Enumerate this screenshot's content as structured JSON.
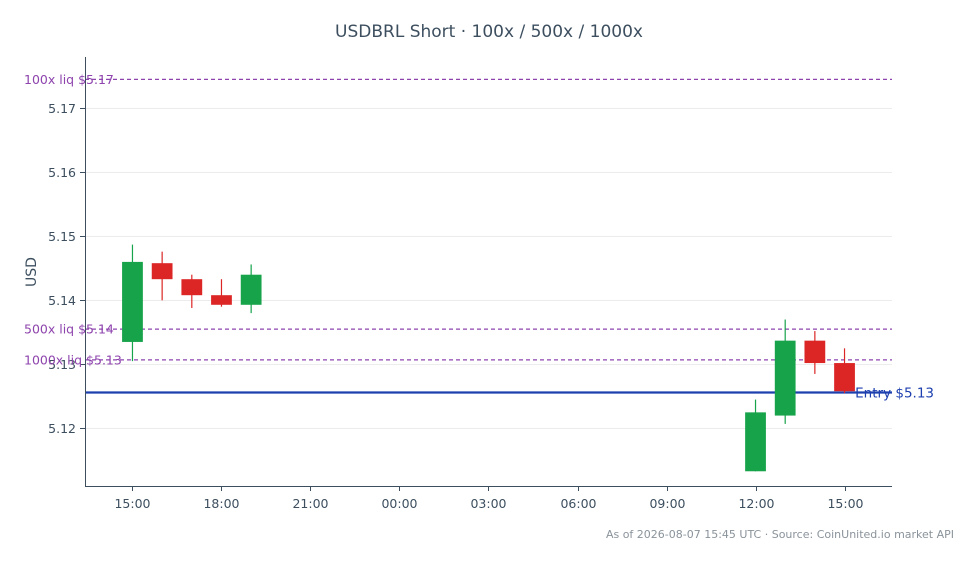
{
  "chart_data": {
    "type": "candlestick",
    "title": "USDBRL Short · 100x / 500x / 1000x",
    "ylabel": "USD",
    "xlabel": "",
    "ylim": [
      5.111,
      5.178
    ],
    "y_ticks": [
      "5.12",
      "5.13",
      "5.14",
      "5.15",
      "5.16",
      "5.17"
    ],
    "x_ticks": [
      {
        "label": "15:00",
        "hour": 0
      },
      {
        "label": "18:00",
        "hour": 3
      },
      {
        "label": "21:00",
        "hour": 6
      },
      {
        "label": "00:00",
        "hour": 9
      },
      {
        "label": "03:00",
        "hour": 12
      },
      {
        "label": "06:00",
        "hour": 15
      },
      {
        "label": "09:00",
        "hour": 18
      },
      {
        "label": "12:00",
        "hour": 21
      },
      {
        "label": "15:00",
        "hour": 24
      }
    ],
    "xlim": [
      -1.6,
      25.6
    ],
    "grid": true,
    "colors": {
      "up": "#16a34a",
      "down": "#dc2626",
      "entry": "#1e40af",
      "liq": "#8e44ad",
      "axis": "#3d4f5f"
    },
    "candles": [
      {
        "hour": 0,
        "open": 5.1335,
        "high": 5.1487,
        "low": 5.1305,
        "close": 5.146
      },
      {
        "hour": 1,
        "open": 5.1458,
        "high": 5.1476,
        "low": 5.14,
        "close": 5.1433
      },
      {
        "hour": 2,
        "open": 5.1433,
        "high": 5.144,
        "low": 5.1388,
        "close": 5.1408
      },
      {
        "hour": 3,
        "open": 5.1408,
        "high": 5.1433,
        "low": 5.139,
        "close": 5.1393
      },
      {
        "hour": 4,
        "open": 5.1393,
        "high": 5.1456,
        "low": 5.138,
        "close": 5.144
      },
      {
        "hour": 21,
        "open": 5.1133,
        "high": 5.1245,
        "low": 5.1133,
        "close": 5.1225
      },
      {
        "hour": 22,
        "open": 5.122,
        "high": 5.137,
        "low": 5.1207,
        "close": 5.1337
      },
      {
        "hour": 23,
        "open": 5.1337,
        "high": 5.1352,
        "low": 5.1285,
        "close": 5.1302
      },
      {
        "hour": 24,
        "open": 5.1302,
        "high": 5.1325,
        "low": 5.1255,
        "close": 5.1258
      }
    ],
    "levels": [
      {
        "label": "100x liq $5.17",
        "value": 5.1745,
        "style": "dashed"
      },
      {
        "label": "500x liq $5.14",
        "value": 5.1355,
        "style": "dashed"
      },
      {
        "label": "1000x liq $5.13",
        "value": 5.1307,
        "style": "dashed"
      },
      {
        "label": "Entry $5.13",
        "value": 5.1256,
        "style": "solid"
      }
    ],
    "footer": "As of 2026-08-07 15:45 UTC · Source: CoinUnited.io market API"
  }
}
